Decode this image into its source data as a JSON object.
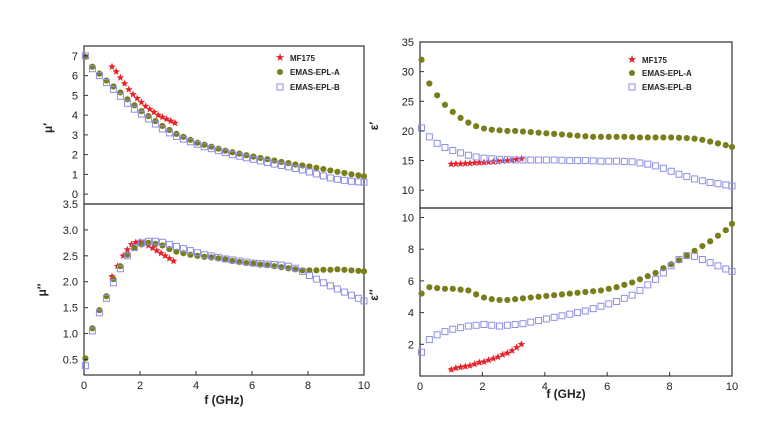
{
  "chart_data": [
    {
      "type": "scatter",
      "ylabel": "μ′",
      "xlim": [
        0,
        10
      ],
      "ylim": [
        -0.5,
        7.5
      ],
      "yticks": [
        "0",
        "1",
        "2",
        "3",
        "4",
        "5",
        "6",
        "7"
      ],
      "series": [
        {
          "name": "MF175",
          "marker": "star",
          "color": "#e8202a",
          "x": [
            1.0,
            1.15,
            1.3,
            1.45,
            1.6,
            1.75,
            1.9,
            2.05,
            2.2,
            2.35,
            2.5,
            2.65,
            2.8,
            2.95,
            3.1,
            3.25
          ],
          "y": [
            6.45,
            6.2,
            5.9,
            5.6,
            5.3,
            5.05,
            4.85,
            4.65,
            4.45,
            4.3,
            4.15,
            4.0,
            3.9,
            3.8,
            3.7,
            3.6
          ]
        },
        {
          "name": "EMAS-EPL-A",
          "marker": "circle",
          "color": "#7a7d1c",
          "x": [
            0.05,
            0.3,
            0.55,
            0.8,
            1.05,
            1.3,
            1.55,
            1.8,
            2.05,
            2.3,
            2.55,
            2.8,
            3.05,
            3.3,
            3.55,
            3.8,
            4.05,
            4.3,
            4.55,
            4.8,
            5.05,
            5.3,
            5.55,
            5.8,
            6.05,
            6.3,
            6.55,
            6.8,
            7.05,
            7.3,
            7.55,
            7.8,
            8.05,
            8.3,
            8.55,
            8.8,
            9.05,
            9.3,
            9.55,
            9.8,
            10.0
          ],
          "y": [
            6.95,
            6.45,
            6.1,
            5.75,
            5.45,
            5.15,
            4.8,
            4.5,
            4.2,
            3.95,
            3.7,
            3.45,
            3.25,
            3.05,
            2.9,
            2.75,
            2.6,
            2.5,
            2.4,
            2.3,
            2.2,
            2.12,
            2.05,
            1.97,
            1.9,
            1.83,
            1.77,
            1.7,
            1.63,
            1.57,
            1.5,
            1.45,
            1.4,
            1.33,
            1.27,
            1.2,
            1.13,
            1.07,
            1.0,
            0.95,
            0.9
          ]
        },
        {
          "name": "EMAS-EPL-B",
          "marker": "square",
          "color": "#8f8fe6",
          "x": [
            0.05,
            0.3,
            0.55,
            0.8,
            1.05,
            1.3,
            1.55,
            1.8,
            2.05,
            2.3,
            2.55,
            2.8,
            3.05,
            3.3,
            3.55,
            3.8,
            4.05,
            4.3,
            4.55,
            4.8,
            5.05,
            5.3,
            5.55,
            5.8,
            6.05,
            6.3,
            6.55,
            6.8,
            7.05,
            7.3,
            7.55,
            7.8,
            8.05,
            8.3,
            8.55,
            8.8,
            9.05,
            9.3,
            9.55,
            9.8,
            10.0
          ],
          "y": [
            7.0,
            6.35,
            6.0,
            5.65,
            5.3,
            4.95,
            4.6,
            4.3,
            4.05,
            3.8,
            3.55,
            3.3,
            3.1,
            2.92,
            2.78,
            2.65,
            2.52,
            2.4,
            2.3,
            2.2,
            2.1,
            2.0,
            1.92,
            1.84,
            1.76,
            1.68,
            1.6,
            1.52,
            1.45,
            1.38,
            1.3,
            1.22,
            1.12,
            1.02,
            0.92,
            0.82,
            0.75,
            0.7,
            0.65,
            0.62,
            0.6
          ]
        }
      ]
    },
    {
      "type": "scatter",
      "xlabel": "f (GHz)",
      "ylabel": "μ″",
      "xlim": [
        0,
        10
      ],
      "ylim": [
        0.2,
        3.5
      ],
      "xticks": [
        "0",
        "2",
        "4",
        "6",
        "8",
        "10"
      ],
      "yticks": [
        "0.5",
        "1.0",
        "1.5",
        "2.0",
        "2.5",
        "3.0",
        "3.5"
      ],
      "series": [
        {
          "name": "MF175",
          "marker": "star",
          "color": "#e8202a",
          "x": [
            1.0,
            1.2,
            1.4,
            1.55,
            1.7,
            1.85,
            2.0,
            2.15,
            2.3,
            2.45,
            2.6,
            2.75,
            2.9,
            3.05,
            3.2
          ],
          "y": [
            2.1,
            2.3,
            2.5,
            2.62,
            2.72,
            2.76,
            2.77,
            2.75,
            2.7,
            2.65,
            2.6,
            2.55,
            2.5,
            2.45,
            2.4
          ]
        },
        {
          "name": "EMAS-EPL-A",
          "marker": "circle",
          "color": "#7a7d1c",
          "x": [
            0.05,
            0.3,
            0.55,
            0.8,
            1.05,
            1.3,
            1.55,
            1.8,
            2.05,
            2.3,
            2.55,
            2.8,
            3.05,
            3.3,
            3.55,
            3.8,
            4.05,
            4.3,
            4.55,
            4.8,
            5.05,
            5.3,
            5.55,
            5.8,
            6.05,
            6.3,
            6.55,
            6.8,
            7.05,
            7.3,
            7.55,
            7.8,
            8.05,
            8.3,
            8.55,
            8.8,
            9.05,
            9.3,
            9.55,
            9.8,
            10.0
          ],
          "y": [
            0.52,
            1.1,
            1.45,
            1.72,
            2.05,
            2.3,
            2.52,
            2.65,
            2.72,
            2.75,
            2.73,
            2.7,
            2.63,
            2.58,
            2.55,
            2.52,
            2.5,
            2.48,
            2.47,
            2.45,
            2.43,
            2.4,
            2.38,
            2.36,
            2.35,
            2.33,
            2.32,
            2.3,
            2.28,
            2.26,
            2.24,
            2.22,
            2.22,
            2.22,
            2.23,
            2.23,
            2.24,
            2.23,
            2.22,
            2.21,
            2.2
          ]
        },
        {
          "name": "EMAS-EPL-B",
          "marker": "square",
          "color": "#8f8fe6",
          "x": [
            0.05,
            0.3,
            0.55,
            0.8,
            1.05,
            1.3,
            1.55,
            1.8,
            2.05,
            2.3,
            2.55,
            2.8,
            3.05,
            3.3,
            3.55,
            3.8,
            4.05,
            4.3,
            4.55,
            4.8,
            5.05,
            5.3,
            5.55,
            5.8,
            6.05,
            6.3,
            6.55,
            6.8,
            7.05,
            7.3,
            7.55,
            7.8,
            8.05,
            8.3,
            8.55,
            8.8,
            9.05,
            9.3,
            9.55,
            9.8,
            10.0
          ],
          "y": [
            0.38,
            1.05,
            1.4,
            1.68,
            1.98,
            2.25,
            2.5,
            2.66,
            2.75,
            2.78,
            2.78,
            2.76,
            2.72,
            2.68,
            2.64,
            2.6,
            2.56,
            2.52,
            2.5,
            2.47,
            2.44,
            2.42,
            2.4,
            2.38,
            2.36,
            2.35,
            2.34,
            2.33,
            2.32,
            2.3,
            2.26,
            2.2,
            2.12,
            2.05,
            1.98,
            1.92,
            1.86,
            1.8,
            1.74,
            1.68,
            1.63
          ]
        }
      ]
    },
    {
      "type": "scatter",
      "ylabel": "ε′",
      "xlim": [
        0,
        10
      ],
      "ylim": [
        7,
        35
      ],
      "yticks": [
        "10",
        "15",
        "20",
        "25",
        "30",
        "35"
      ],
      "series": [
        {
          "name": "MF175",
          "marker": "star",
          "color": "#e8202a",
          "x": [
            1.0,
            1.15,
            1.3,
            1.45,
            1.6,
            1.75,
            1.9,
            2.05,
            2.2,
            2.35,
            2.5,
            2.65,
            2.8,
            2.95,
            3.1,
            3.25
          ],
          "y": [
            14.4,
            14.45,
            14.45,
            14.5,
            14.55,
            14.6,
            14.65,
            14.7,
            14.75,
            14.8,
            14.85,
            14.95,
            15.0,
            15.1,
            15.2,
            15.3
          ]
        },
        {
          "name": "EMAS-EPL-A",
          "marker": "circle",
          "color": "#7a7d1c",
          "x": [
            0.05,
            0.3,
            0.55,
            0.8,
            1.05,
            1.3,
            1.55,
            1.8,
            2.05,
            2.3,
            2.55,
            2.8,
            3.05,
            3.3,
            3.55,
            3.8,
            4.05,
            4.3,
            4.55,
            4.8,
            5.05,
            5.3,
            5.55,
            5.8,
            6.05,
            6.3,
            6.55,
            6.8,
            7.05,
            7.3,
            7.55,
            7.8,
            8.05,
            8.3,
            8.55,
            8.8,
            9.05,
            9.3,
            9.55,
            9.8,
            10.0
          ],
          "y": [
            32.0,
            28.0,
            26.0,
            24.4,
            23.2,
            22.2,
            21.4,
            20.8,
            20.4,
            20.2,
            20.1,
            20.0,
            20.0,
            19.9,
            19.8,
            19.7,
            19.6,
            19.5,
            19.4,
            19.3,
            19.2,
            19.1,
            19.0,
            19.0,
            19.0,
            19.0,
            19.0,
            18.95,
            18.9,
            18.9,
            18.9,
            18.9,
            18.9,
            18.85,
            18.8,
            18.7,
            18.5,
            18.2,
            17.9,
            17.6,
            17.3
          ]
        },
        {
          "name": "EMAS-EPL-B",
          "marker": "square",
          "color": "#8f8fe6",
          "x": [
            0.05,
            0.3,
            0.55,
            0.8,
            1.05,
            1.3,
            1.55,
            1.8,
            2.05,
            2.3,
            2.55,
            2.8,
            3.05,
            3.3,
            3.55,
            3.8,
            4.05,
            4.3,
            4.55,
            4.8,
            5.05,
            5.3,
            5.55,
            5.8,
            6.05,
            6.3,
            6.55,
            6.8,
            7.05,
            7.3,
            7.55,
            7.8,
            8.05,
            8.3,
            8.55,
            8.8,
            9.05,
            9.3,
            9.55,
            9.8,
            10.0
          ],
          "y": [
            20.5,
            19.0,
            17.9,
            17.2,
            16.7,
            16.3,
            15.9,
            15.6,
            15.4,
            15.3,
            15.2,
            15.15,
            15.1,
            15.1,
            15.1,
            15.1,
            15.1,
            15.1,
            15.05,
            15.0,
            15.0,
            15.0,
            14.95,
            14.9,
            14.9,
            14.9,
            14.85,
            14.8,
            14.6,
            14.4,
            14.1,
            13.7,
            13.2,
            12.7,
            12.3,
            11.9,
            11.6,
            11.3,
            11.1,
            10.9,
            10.7
          ]
        }
      ]
    },
    {
      "type": "scatter",
      "xlabel": "f (GHz)",
      "ylabel": "ε″",
      "xlim": [
        0,
        10
      ],
      "ylim": [
        0,
        10.6
      ],
      "xticks": [
        "0",
        "2",
        "4",
        "6",
        "8",
        "10"
      ],
      "yticks": [
        "2",
        "4",
        "6",
        "8",
        "10"
      ],
      "series": [
        {
          "name": "MF175",
          "marker": "star",
          "color": "#e8202a",
          "x": [
            1.0,
            1.15,
            1.3,
            1.45,
            1.6,
            1.75,
            1.9,
            2.05,
            2.2,
            2.35,
            2.5,
            2.65,
            2.8,
            2.95,
            3.1,
            3.25
          ],
          "y": [
            0.4,
            0.5,
            0.55,
            0.6,
            0.65,
            0.75,
            0.85,
            0.9,
            1.0,
            1.1,
            1.2,
            1.35,
            1.45,
            1.6,
            1.8,
            2.0
          ]
        },
        {
          "name": "EMAS-EPL-A",
          "marker": "circle",
          "color": "#7a7d1c",
          "x": [
            0.05,
            0.3,
            0.55,
            0.8,
            1.05,
            1.3,
            1.55,
            1.8,
            2.05,
            2.3,
            2.55,
            2.8,
            3.05,
            3.3,
            3.55,
            3.8,
            4.05,
            4.3,
            4.55,
            4.8,
            5.05,
            5.3,
            5.55,
            5.8,
            6.05,
            6.3,
            6.55,
            6.8,
            7.05,
            7.3,
            7.55,
            7.8,
            8.05,
            8.3,
            8.55,
            8.8,
            9.05,
            9.3,
            9.55,
            9.8,
            10.0
          ],
          "y": [
            5.2,
            5.6,
            5.55,
            5.5,
            5.5,
            5.45,
            5.4,
            5.15,
            4.95,
            4.85,
            4.8,
            4.8,
            4.85,
            4.9,
            4.95,
            5.0,
            5.05,
            5.1,
            5.15,
            5.2,
            5.25,
            5.3,
            5.35,
            5.4,
            5.5,
            5.6,
            5.75,
            5.9,
            6.1,
            6.3,
            6.5,
            6.8,
            7.05,
            7.3,
            7.6,
            7.9,
            8.2,
            8.5,
            8.85,
            9.2,
            9.6
          ]
        },
        {
          "name": "EMAS-EPL-B",
          "marker": "square",
          "color": "#8f8fe6",
          "x": [
            0.05,
            0.3,
            0.55,
            0.8,
            1.05,
            1.3,
            1.55,
            1.8,
            2.05,
            2.3,
            2.55,
            2.8,
            3.05,
            3.3,
            3.55,
            3.8,
            4.05,
            4.3,
            4.55,
            4.8,
            5.05,
            5.3,
            5.55,
            5.8,
            6.05,
            6.3,
            6.55,
            6.8,
            7.05,
            7.3,
            7.55,
            7.8,
            8.05,
            8.3,
            8.55,
            8.8,
            9.05,
            9.3,
            9.55,
            9.8,
            10.0
          ],
          "y": [
            1.5,
            2.3,
            2.6,
            2.8,
            2.95,
            3.05,
            3.15,
            3.2,
            3.25,
            3.2,
            3.15,
            3.2,
            3.25,
            3.3,
            3.4,
            3.5,
            3.6,
            3.7,
            3.8,
            3.9,
            4.0,
            4.1,
            4.25,
            4.4,
            4.55,
            4.7,
            4.9,
            5.1,
            5.4,
            5.75,
            6.1,
            6.5,
            6.95,
            7.35,
            7.6,
            7.55,
            7.35,
            7.15,
            6.95,
            6.75,
            6.6
          ]
        }
      ]
    }
  ]
}
